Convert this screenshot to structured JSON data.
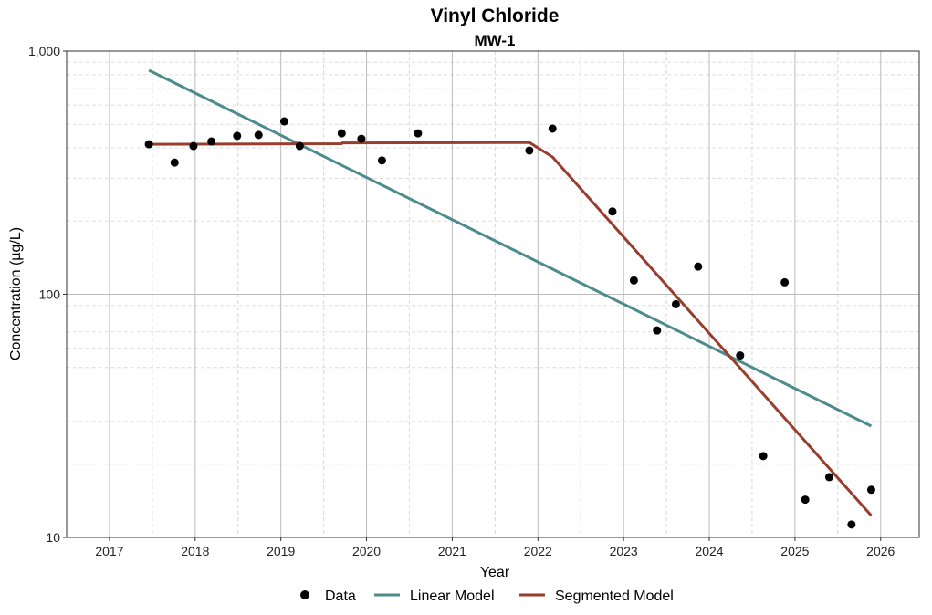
{
  "chart_data": {
    "type": "scatter",
    "title": "Vinyl Chloride",
    "subtitle": "MW-1",
    "xlabel": "Year",
    "ylabel": "Concentration (µg/L)",
    "xlim": [
      2016.5,
      2026.45
    ],
    "ylim": [
      10,
      1000
    ],
    "yscale": "log",
    "x_ticks": [
      2017,
      2018,
      2019,
      2020,
      2021,
      2022,
      2023,
      2024,
      2025,
      2026
    ],
    "x_tick_labels": [
      "2017",
      "2018",
      "2019",
      "2020",
      "2021",
      "2022",
      "2023",
      "2024",
      "2025",
      "2026"
    ],
    "y_ticks": [
      10,
      100,
      1000
    ],
    "y_tick_labels": [
      "10",
      "100",
      "1,000"
    ],
    "grid": true,
    "legend_position": "bottom",
    "colors": {
      "data": "#000000",
      "linear": "#4d8b8d",
      "segmented": "#983e2f"
    },
    "series": [
      {
        "name": "Data",
        "kind": "points",
        "x": [
          2017.46,
          2017.76,
          2017.98,
          2018.19,
          2018.49,
          2018.74,
          2019.04,
          2019.22,
          2019.71,
          2019.94,
          2020.18,
          2020.6,
          2021.9,
          2022.17,
          2022.87,
          2023.12,
          2023.39,
          2023.61,
          2023.87,
          2024.36,
          2024.63,
          2024.88,
          2025.12,
          2025.4,
          2025.66,
          2025.89
        ],
        "y": [
          414,
          348,
          407,
          425,
          448,
          452,
          514,
          407,
          459,
          436,
          355,
          459,
          390,
          480,
          219,
          114,
          71,
          91,
          130,
          56,
          21.6,
          112,
          14.3,
          17.7,
          11.3,
          15.7
        ]
      },
      {
        "name": "Linear Model",
        "kind": "line",
        "x": [
          2017.46,
          2025.89
        ],
        "y": [
          834,
          28.7
        ]
      },
      {
        "name": "Segmented Model",
        "kind": "line",
        "x": [
          2017.46,
          2019.71,
          2019.72,
          2021.9,
          2022.17,
          2025.89
        ],
        "y": [
          414,
          416,
          419,
          421,
          367,
          12.3
        ]
      }
    ]
  }
}
